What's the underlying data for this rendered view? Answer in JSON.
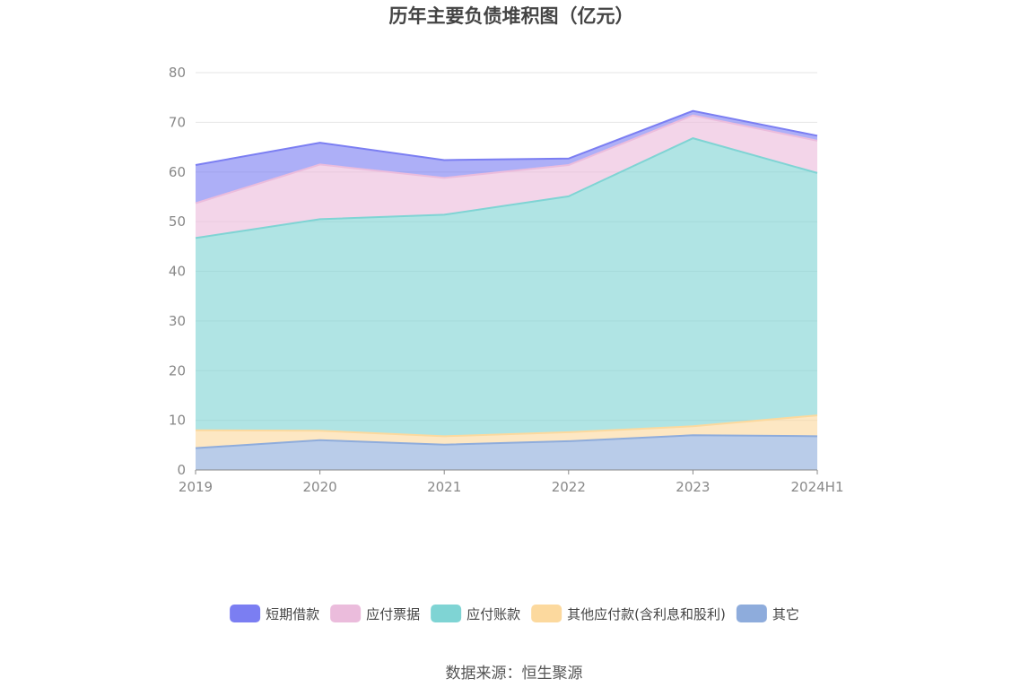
{
  "chart_data": {
    "type": "area",
    "stacked": true,
    "title": "历年主要负债堆积图（亿元）",
    "categories": [
      "2019",
      "2020",
      "2021",
      "2022",
      "2023",
      "2024H1"
    ],
    "ylim": [
      0,
      80
    ],
    "yticks": [
      0,
      10,
      20,
      30,
      40,
      50,
      60,
      70,
      80
    ],
    "grid": true,
    "legend_position": "bottom",
    "series": [
      {
        "name": "其它",
        "color": "#8eacdc",
        "values": [
          4.4,
          6.0,
          5.1,
          5.8,
          7.0,
          6.8
        ]
      },
      {
        "name": "其他应付款(含利息和股利)",
        "color": "#fcd99e",
        "values": [
          3.6,
          1.9,
          1.7,
          1.8,
          1.8,
          4.2
        ]
      },
      {
        "name": "应付账款",
        "color": "#7fd4d4",
        "values": [
          38.7,
          42.6,
          44.6,
          47.5,
          58.0,
          48.8
        ]
      },
      {
        "name": "应付票据",
        "color": "#ebbcdc",
        "values": [
          7.0,
          11.0,
          7.4,
          6.3,
          4.6,
          6.5
        ]
      },
      {
        "name": "短期借款",
        "color": "#7b7ef2",
        "values": [
          7.7,
          4.4,
          3.6,
          1.3,
          0.9,
          1.0
        ]
      }
    ],
    "legend_order": [
      "短期借款",
      "应付票据",
      "应付账款",
      "其他应付款(含利息和股利)",
      "其它"
    ]
  },
  "source": "数据来源：恒生聚源"
}
